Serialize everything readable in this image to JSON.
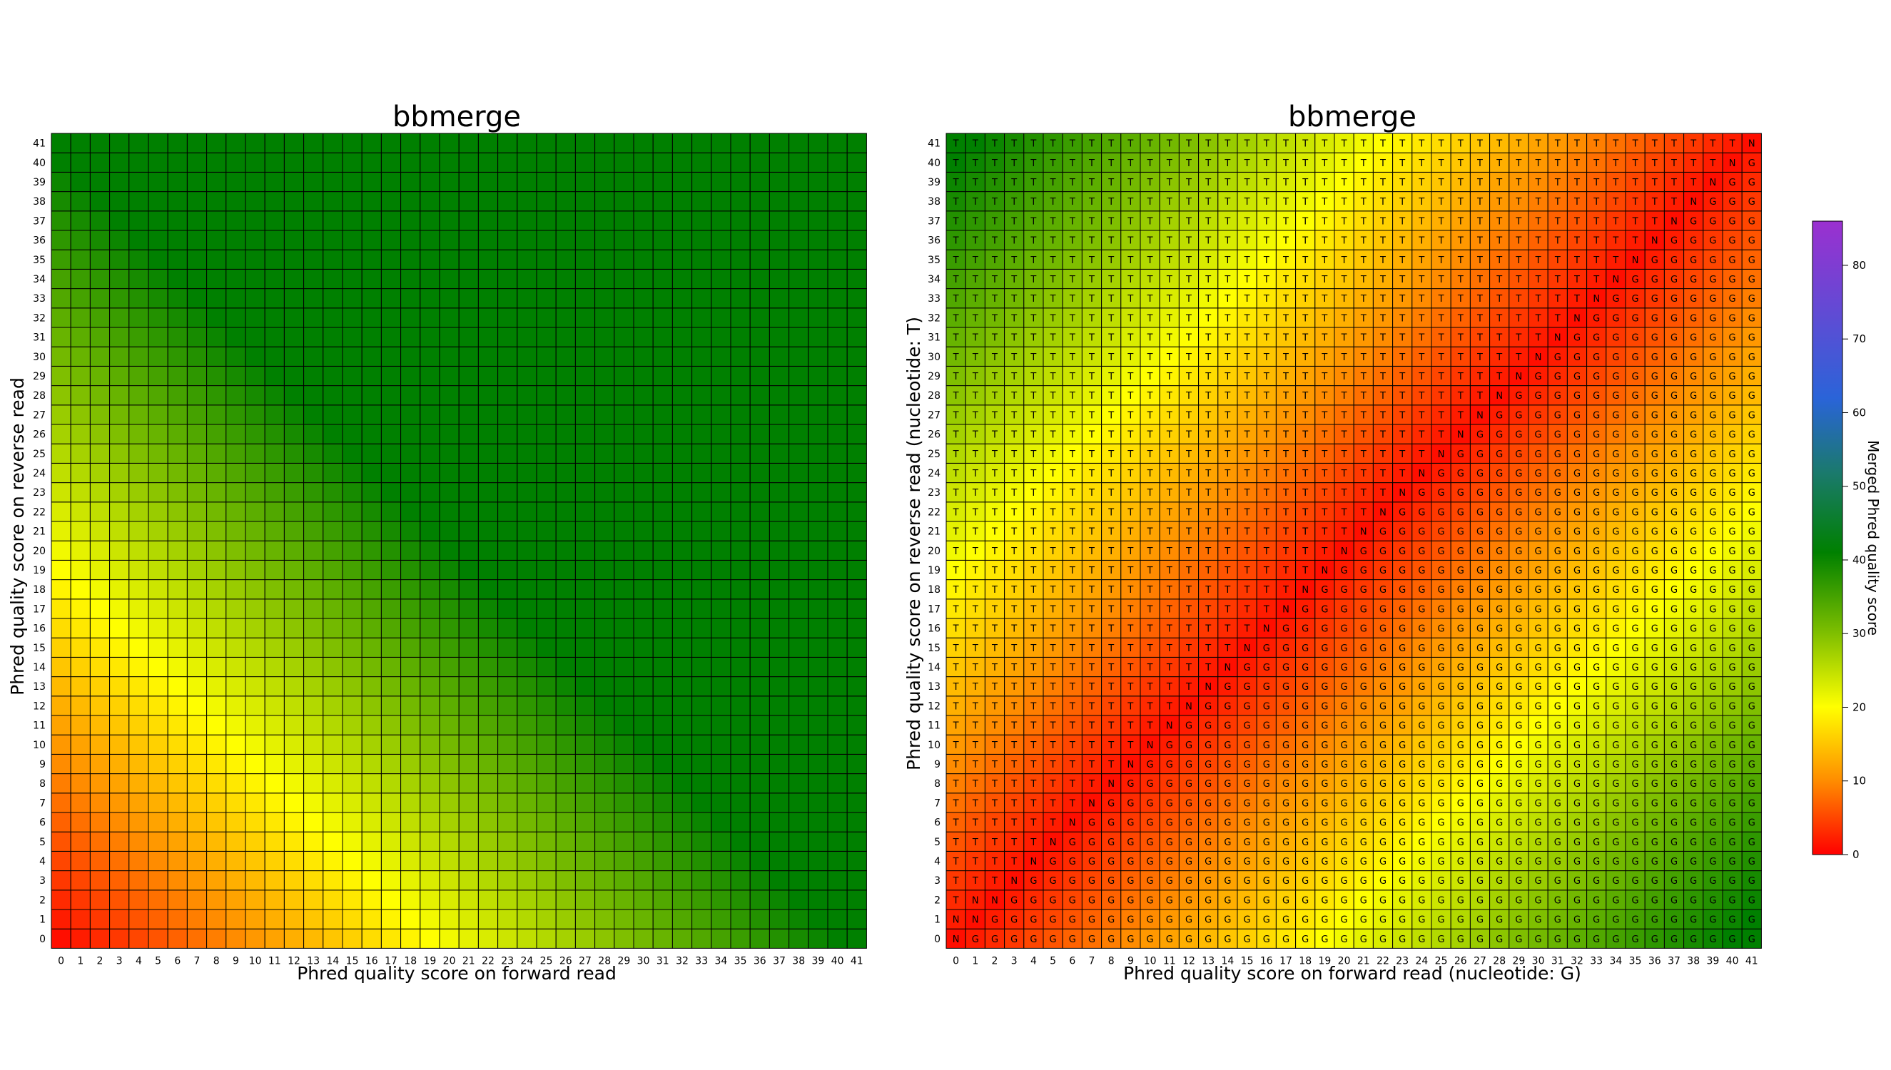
{
  "chart_data": [
    {
      "type": "heatmap",
      "title": "bbmerge",
      "xlabel": "Phred quality score on forward read",
      "ylabel": "Phred quality score on reverse read",
      "x_ticks": [
        0,
        1,
        2,
        3,
        4,
        5,
        6,
        7,
        8,
        9,
        10,
        11,
        12,
        13,
        14,
        15,
        16,
        17,
        18,
        19,
        20,
        21,
        22,
        23,
        24,
        25,
        26,
        27,
        28,
        29,
        30,
        31,
        32,
        33,
        34,
        35,
        36,
        37,
        38,
        39,
        40,
        41
      ],
      "y_ticks": [
        0,
        1,
        2,
        3,
        4,
        5,
        6,
        7,
        8,
        9,
        10,
        11,
        12,
        13,
        14,
        15,
        16,
        17,
        18,
        19,
        20,
        21,
        22,
        23,
        24,
        25,
        26,
        27,
        28,
        29,
        30,
        31,
        32,
        33,
        34,
        35,
        36,
        37,
        38,
        39,
        40,
        41
      ],
      "cell_value_rule": "merged quality ≈ min(41, qF + qR); near 0 at (0,0), ~20 (yellow) along qF+qR≈20, ~41 (dark green) at high values",
      "value_samples": [
        {
          "x": 0,
          "y": 0,
          "value": 1
        },
        {
          "x": 10,
          "y": 10,
          "value": 20
        },
        {
          "x": 20,
          "y": 0,
          "value": 20
        },
        {
          "x": 0,
          "y": 20,
          "value": 20
        },
        {
          "x": 30,
          "y": 10,
          "value": 40
        },
        {
          "x": 41,
          "y": 41,
          "value": 41
        }
      ],
      "grid": true
    },
    {
      "type": "heatmap",
      "title": "bbmerge",
      "xlabel": "Phred quality score on forward read (nucleotide: G)",
      "ylabel": "Phred quality score on reverse read (nucleotide: T)",
      "x_ticks": [
        0,
        1,
        2,
        3,
        4,
        5,
        6,
        7,
        8,
        9,
        10,
        11,
        12,
        13,
        14,
        15,
        16,
        17,
        18,
        19,
        20,
        21,
        22,
        23,
        24,
        25,
        26,
        27,
        28,
        29,
        30,
        31,
        32,
        33,
        34,
        35,
        36,
        37,
        38,
        39,
        40,
        41
      ],
      "y_ticks": [
        0,
        1,
        2,
        3,
        4,
        5,
        6,
        7,
        8,
        9,
        10,
        11,
        12,
        13,
        14,
        15,
        16,
        17,
        18,
        19,
        20,
        21,
        22,
        23,
        24,
        25,
        26,
        27,
        28,
        29,
        30,
        31,
        32,
        33,
        34,
        35,
        36,
        37,
        38,
        39,
        40,
        41
      ],
      "cell_labels": [
        "T",
        "G",
        "N"
      ],
      "cell_label_rule": "N where qF and qR are equal or within 1 of each other at low scores; T where qR > qF; G where qF > qR",
      "cell_value_rule": "merged quality ≈ |qF − qR|; red along the diagonal, yellow at a difference of ~20, green at a difference of ~41",
      "value_samples": [
        {
          "x": 0,
          "y": 0,
          "value": 1,
          "label": "N"
        },
        {
          "x": 20,
          "y": 20,
          "value": 1,
          "label": "N"
        },
        {
          "x": 41,
          "y": 0,
          "value": 41,
          "label": "G"
        },
        {
          "x": 0,
          "y": 41,
          "value": 41,
          "label": "T"
        },
        {
          "x": 20,
          "y": 0,
          "value": 20,
          "label": "G"
        }
      ],
      "grid": true
    }
  ],
  "colorbar": {
    "label": "Merged Phred quality score",
    "ticks": [
      0,
      10,
      20,
      30,
      40,
      50,
      60,
      70,
      80
    ],
    "range": [
      0,
      86
    ],
    "colors": {
      "0": "#ff0000",
      "20": "#ffff00",
      "41": "#008000",
      "60": "#2a64d8",
      "86": "#9b30d0"
    }
  }
}
